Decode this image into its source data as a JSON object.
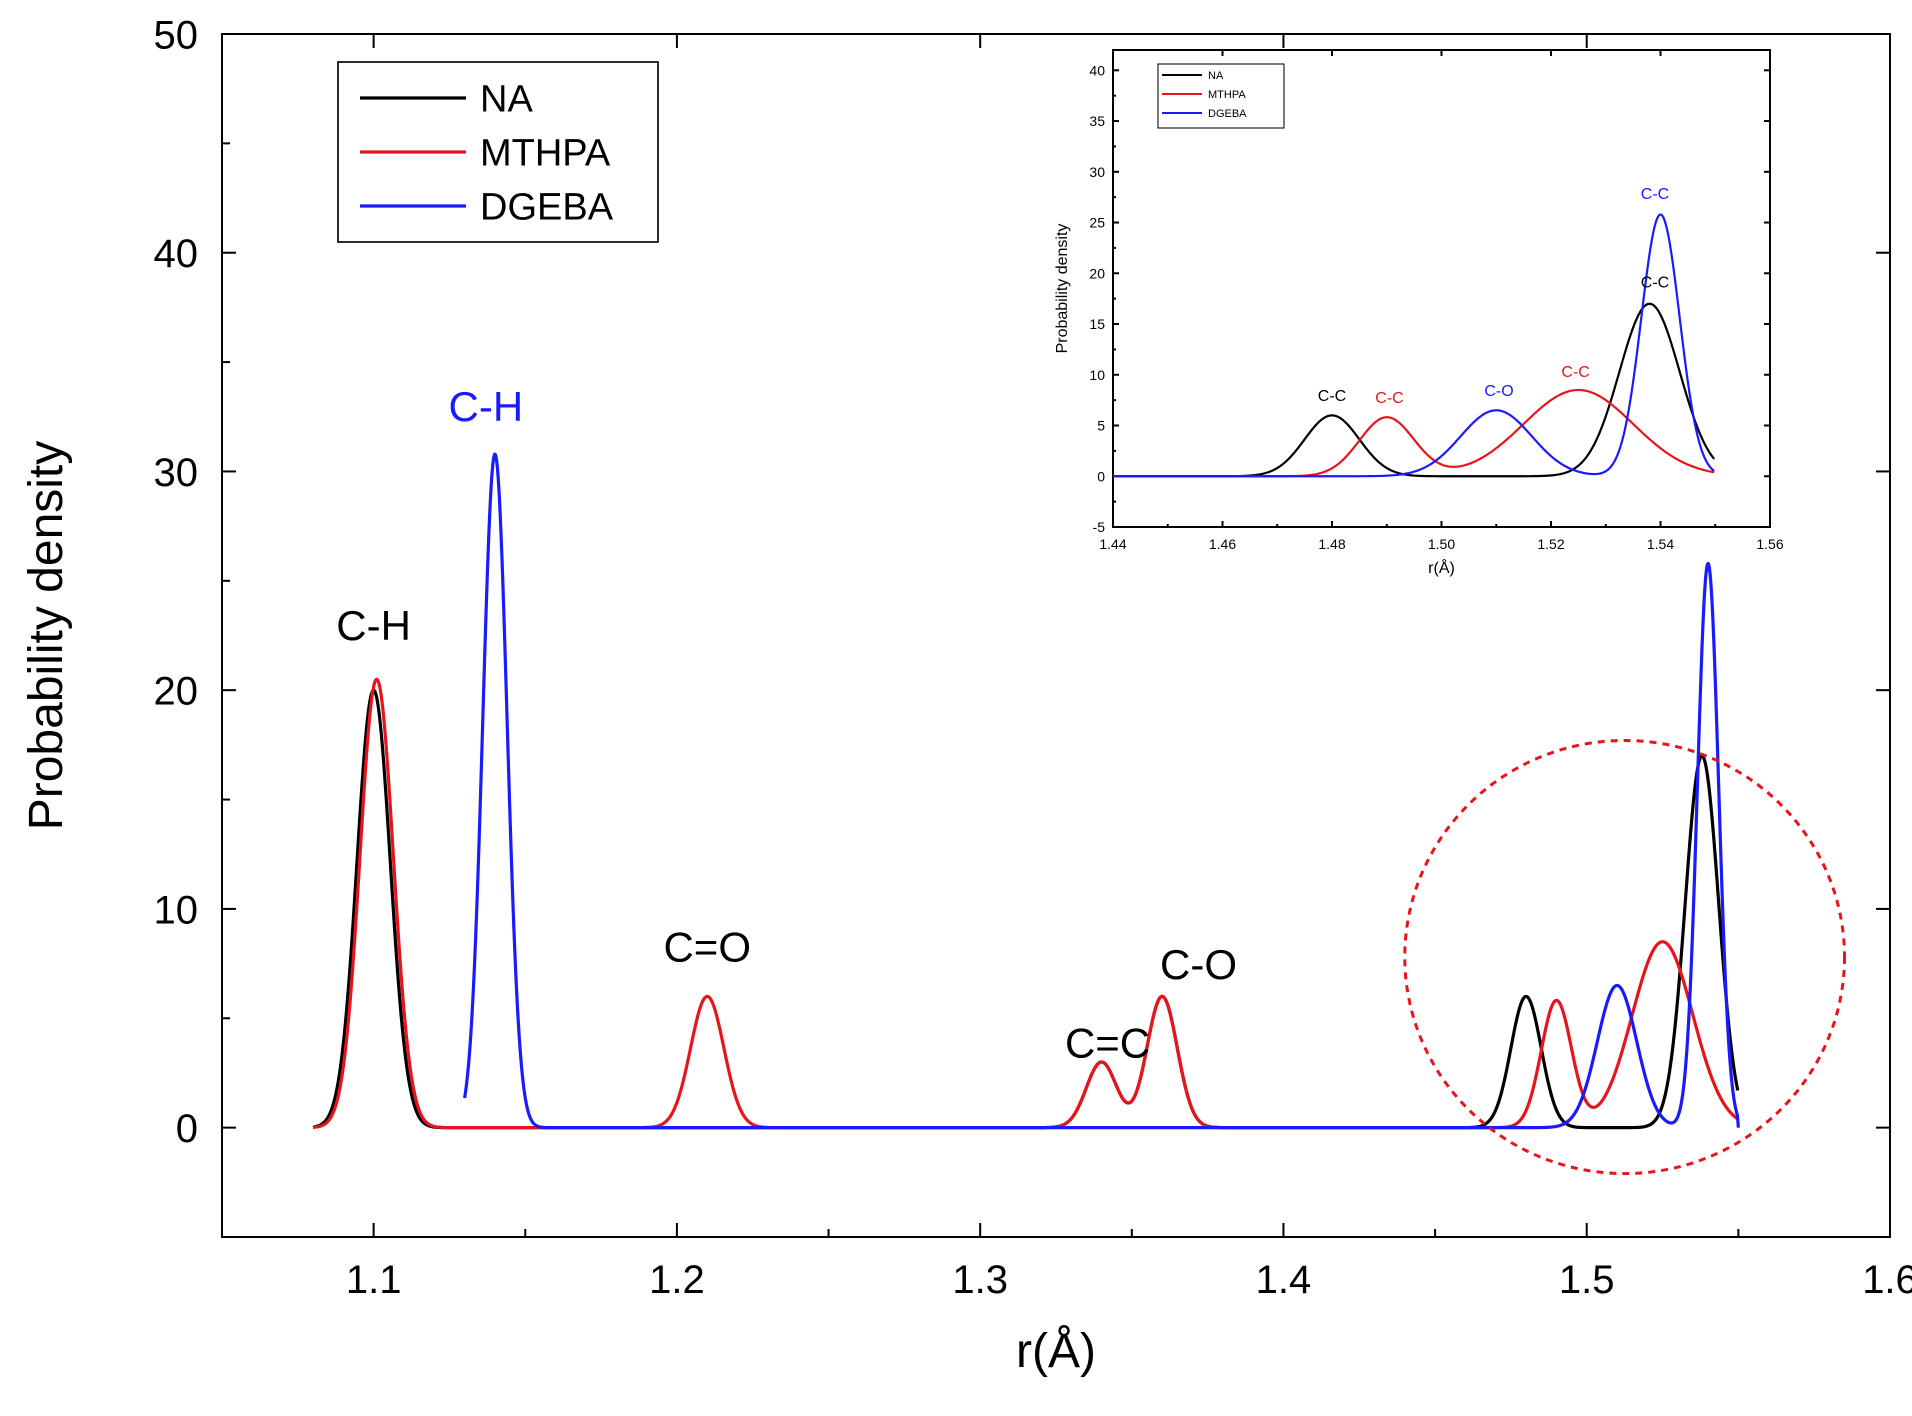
{
  "chart_data": {
    "type": "line",
    "title": "",
    "xlabel": "r(Å)",
    "ylabel": "Probability density",
    "xlim": [
      1.05,
      1.6
    ],
    "ylim": [
      -5,
      50
    ],
    "xticks": [
      "1.1",
      "1.2",
      "1.3",
      "1.4",
      "1.5",
      "1.6"
    ],
    "yticks": [
      "0",
      "10",
      "20",
      "30",
      "40",
      "50"
    ],
    "legend": {
      "position": "top-left",
      "entries": [
        "NA",
        "MTHPA",
        "DGEBA"
      ]
    },
    "series": [
      {
        "name": "NA",
        "color": "#000000",
        "range": [
          1.08,
          1.55
        ],
        "peaks": [
          {
            "x": 1.1,
            "y": 20,
            "sigma": 0.0055
          },
          {
            "x": 1.34,
            "y": 3,
            "sigma": 0.005
          },
          {
            "x": 1.36,
            "y": 6,
            "sigma": 0.005
          },
          {
            "x": 1.48,
            "y": 6,
            "sigma": 0.005
          },
          {
            "x": 1.538,
            "y": 17,
            "sigma": 0.0055
          }
        ],
        "end": {
          "x": 1.55,
          "y": 0
        }
      },
      {
        "name": "MTHPA",
        "color": "#e8141b",
        "range": [
          1.08,
          1.55
        ],
        "peaks": [
          {
            "x": 1.101,
            "y": 20.5,
            "sigma": 0.0055
          },
          {
            "x": 1.21,
            "y": 6,
            "sigma": 0.0055
          },
          {
            "x": 1.34,
            "y": 3,
            "sigma": 0.005
          },
          {
            "x": 1.36,
            "y": 6,
            "sigma": 0.005
          },
          {
            "x": 1.49,
            "y": 5.8,
            "sigma": 0.005
          },
          {
            "x": 1.525,
            "y": 8.5,
            "sigma": 0.01
          }
        ],
        "end": {
          "x": 1.55,
          "y": 0
        }
      },
      {
        "name": "DGEBA",
        "color": "#1a1aff",
        "range": [
          1.13,
          1.55
        ],
        "peaks": [
          {
            "x": 1.14,
            "y": 30.8,
            "sigma": 0.004
          },
          {
            "x": 1.51,
            "y": 6.5,
            "sigma": 0.0065
          },
          {
            "x": 1.54,
            "y": 25.8,
            "sigma": 0.0035
          }
        ],
        "end": {
          "x": 1.55,
          "y": 0
        }
      }
    ],
    "annotations": [
      {
        "text": "C-H",
        "x": 1.1,
        "y": 22.3,
        "color": "#000000"
      },
      {
        "text": "C-H",
        "x": 1.137,
        "y": 32.3,
        "color": "#1a1aff"
      },
      {
        "text": "C=O",
        "x": 1.21,
        "y": 7.6,
        "color": "#000000"
      },
      {
        "text": "C=C",
        "x": 1.342,
        "y": 3.2,
        "color": "#000000"
      },
      {
        "text": "C-O",
        "x": 1.372,
        "y": 6.8,
        "color": "#000000"
      }
    ],
    "highlight": {
      "shape": "dashed-circle",
      "cx": 1.5125,
      "cy": 7.8,
      "rx_data": 0.0725,
      "ry_data": 9.9,
      "color": "#e8141b"
    },
    "inset": {
      "xlabel": "r(Å)",
      "ylabel": "Probability density",
      "xlim": [
        1.44,
        1.56
      ],
      "ylim": [
        -5,
        42
      ],
      "xticks": [
        "1.44",
        "1.46",
        "1.48",
        "1.50",
        "1.52",
        "1.54",
        "1.56"
      ],
      "yticks": [
        "-5",
        "0",
        "5",
        "10",
        "15",
        "20",
        "25",
        "30",
        "35",
        "40"
      ],
      "legend": {
        "position": "top-left",
        "entries": [
          "NA",
          "MTHPA",
          "DGEBA"
        ]
      },
      "annotations": [
        {
          "text": "C-C",
          "x": 1.48,
          "y": 7.4,
          "color": "#000000"
        },
        {
          "text": "C-C",
          "x": 1.4905,
          "y": 7.2,
          "color": "#e8141b"
        },
        {
          "text": "C-O",
          "x": 1.5105,
          "y": 7.9,
          "color": "#1a1aff"
        },
        {
          "text": "C-C",
          "x": 1.5245,
          "y": 9.8,
          "color": "#e8141b"
        },
        {
          "text": "C-C",
          "x": 1.539,
          "y": 18.6,
          "color": "#000000"
        },
        {
          "text": "C-C",
          "x": 1.539,
          "y": 27.3,
          "color": "#1a1aff"
        }
      ]
    }
  }
}
